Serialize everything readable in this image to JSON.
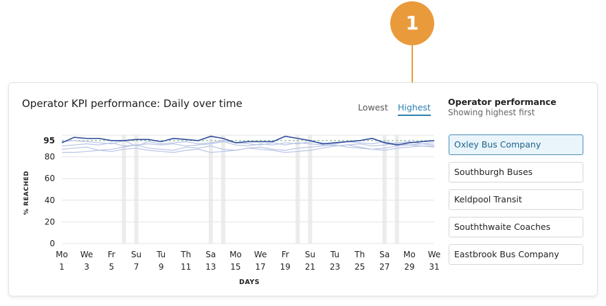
{
  "step_badge": "1",
  "card": {
    "title": "Operator KPI performance: Daily over time",
    "sort_lowest": "Lowest",
    "sort_highest": "Highest",
    "panel_title": "Operator performance",
    "panel_subtitle": "Showing highest first",
    "operators": [
      "Oxley Bus Company",
      "Southburgh Buses",
      "Keldpool Transit",
      "Souththwaite Coaches",
      "Eastbrook Bus Company"
    ],
    "selected_operator": "Oxley Bus Company"
  },
  "colors": {
    "accent": "#2a7fb0",
    "badge": "#e99a3b",
    "selected_line": "#2f4a9a",
    "other_lines": "#b8c4e6",
    "target_line": "#9cc5a8",
    "weekend_band": "#ececec"
  },
  "chart_data": {
    "type": "line",
    "xlabel": "DAYS",
    "ylabel": "% REACHED",
    "ylim": [
      0,
      100
    ],
    "yticks": [
      0,
      20,
      40,
      60,
      80,
      95
    ],
    "target": 95,
    "x": [
      1,
      2,
      3,
      4,
      5,
      6,
      7,
      8,
      9,
      10,
      11,
      12,
      13,
      14,
      15,
      16,
      17,
      18,
      19,
      20,
      21,
      22,
      23,
      24,
      25,
      26,
      27,
      28,
      29,
      30,
      31
    ],
    "x_tick_labels": [
      {
        "day": "Mo",
        "date": "1"
      },
      {
        "day": "We",
        "date": "3"
      },
      {
        "day": "Fr",
        "date": "5"
      },
      {
        "day": "Su",
        "date": "7"
      },
      {
        "day": "Tu",
        "date": "9"
      },
      {
        "day": "Th",
        "date": "11"
      },
      {
        "day": "Sa",
        "date": "13"
      },
      {
        "day": "Mo",
        "date": "15"
      },
      {
        "day": "We",
        "date": "17"
      },
      {
        "day": "Fr",
        "date": "19"
      },
      {
        "day": "Su",
        "date": "21"
      },
      {
        "day": "Tu",
        "date": "23"
      },
      {
        "day": "Th",
        "date": "25"
      },
      {
        "day": "Sa",
        "date": "27"
      },
      {
        "day": "Mo",
        "date": "29"
      },
      {
        "day": "We",
        "date": "31"
      }
    ],
    "weekend_days": [
      6,
      7,
      13,
      14,
      20,
      21,
      27,
      28
    ],
    "series": [
      {
        "name": "Oxley Bus Company",
        "values": [
          93,
          98,
          97,
          97,
          95,
          95,
          96,
          96,
          94,
          97,
          96,
          95,
          99,
          97,
          93,
          94,
          94,
          94,
          99,
          97,
          95,
          92,
          93,
          94,
          95,
          97,
          93,
          91,
          93,
          94,
          95
        ]
      },
      {
        "name": "Southburgh Buses",
        "values": [
          94,
          95,
          94,
          93,
          92,
          95,
          90,
          94,
          92,
          93,
          94,
          92,
          93,
          95,
          93,
          92,
          91,
          93,
          91,
          93,
          92,
          91,
          92,
          94,
          93,
          92,
          94,
          92,
          91,
          92,
          93
        ]
      },
      {
        "name": "Keldpool Transit",
        "values": [
          90,
          91,
          92,
          91,
          93,
          90,
          91,
          92,
          91,
          92,
          90,
          91,
          92,
          94,
          91,
          90,
          92,
          91,
          93,
          92,
          94,
          93,
          90,
          91,
          92,
          90,
          91,
          93,
          94,
          92,
          91
        ]
      },
      {
        "name": "Souththwaite Coaches",
        "values": [
          87,
          88,
          89,
          86,
          87,
          89,
          91,
          88,
          87,
          86,
          89,
          88,
          90,
          87,
          86,
          88,
          89,
          87,
          86,
          88,
          89,
          90,
          91,
          89,
          88,
          87,
          86,
          88,
          89,
          90,
          89
        ]
      },
      {
        "name": "Eastbrook Bus Company",
        "values": [
          84,
          84,
          85,
          86,
          85,
          87,
          88,
          86,
          85,
          84,
          86,
          87,
          84,
          85,
          86,
          88,
          87,
          86,
          84,
          85,
          86,
          88,
          90,
          91,
          89,
          87,
          88,
          90,
          91,
          90,
          90
        ]
      }
    ]
  }
}
